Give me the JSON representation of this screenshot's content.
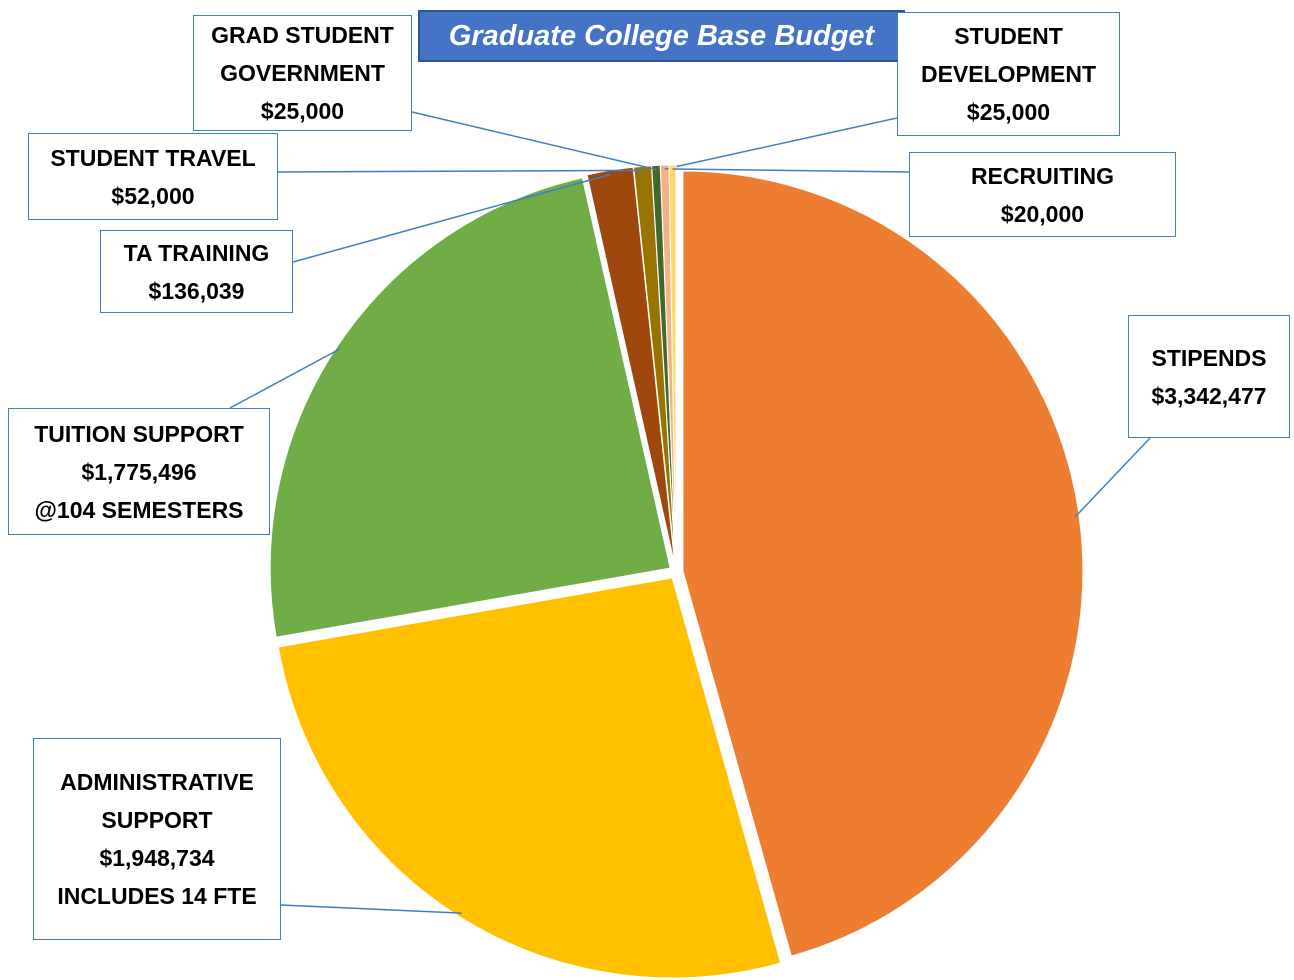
{
  "chart_data": {
    "type": "pie",
    "title": "Graduate College Base Budget",
    "categories": [
      "STIPENDS",
      "ADMINISTRATIVE SUPPORT",
      "TUITION SUPPORT",
      "TA TRAINING",
      "STUDENT TRAVEL",
      "GRAD STUDENT GOVERNMENT",
      "STUDENT DEVELOPMENT",
      "RECRUITING"
    ],
    "values": [
      3342477,
      1948734,
      1775496,
      136039,
      52000,
      25000,
      25000,
      20000
    ],
    "value_labels": [
      "$3,342,477",
      "$1,948,734",
      "$1,775,496",
      "$136,039",
      "$52,000",
      "$25,000",
      "$25,000",
      "$20,000"
    ],
    "notes": [
      null,
      "INCLUDES 14 FTE",
      "@104 SEMESTERS",
      null,
      null,
      null,
      null,
      null
    ],
    "colors": [
      "#ED7D31",
      "#FFC000",
      "#70AD47",
      "#9E480E",
      "#997300",
      "#43682B",
      "#F4B183",
      "#FFD966"
    ]
  }
}
